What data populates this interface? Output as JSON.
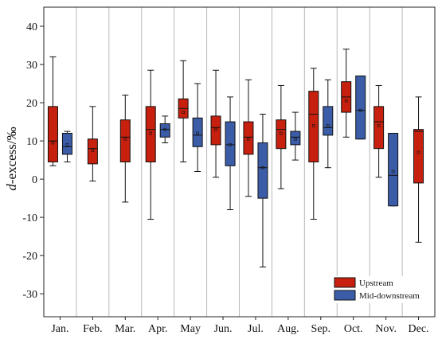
{
  "chart_data": {
    "type": "box",
    "ylabel_italic": "d",
    "ylabel_rest": "-excess/‰",
    "ylim": [
      -36,
      45
    ],
    "yticks": [
      40,
      30,
      20,
      10,
      0,
      -10,
      -20,
      -30
    ],
    "categories": [
      "Jan.",
      "Feb.",
      "Mar.",
      "Apr.",
      "May",
      "Jun.",
      "Jul.",
      "Aug.",
      "Sep.",
      "Oct.",
      "Nov.",
      "Dec."
    ],
    "legend_position": "bottom-right",
    "grid": "vertical separators",
    "series": [
      {
        "name": "Upstream",
        "color": "#c8200e",
        "boxes": [
          {
            "min": 3.5,
            "q1": 4.5,
            "median": 10,
            "mean": 9.5,
            "q3": 19,
            "max": 32
          },
          {
            "min": -0.5,
            "q1": 4,
            "median": 8,
            "mean": 7.5,
            "q3": 10.5,
            "max": 19
          },
          {
            "min": -6,
            "q1": 4.5,
            "median": 11,
            "mean": 10.5,
            "q3": 15.5,
            "max": 22
          },
          {
            "min": -10.5,
            "q1": 4.5,
            "median": 13,
            "mean": 12,
            "q3": 19,
            "max": 28.5
          },
          {
            "min": 4.5,
            "q1": 16,
            "median": 18.5,
            "mean": 17.5,
            "q3": 21,
            "max": 31
          },
          {
            "min": 0.5,
            "q1": 9,
            "median": 13.5,
            "mean": 13,
            "q3": 16.5,
            "max": 28.5
          },
          {
            "min": -4.5,
            "q1": 6.5,
            "median": 11,
            "mean": 10.5,
            "q3": 15,
            "max": 26
          },
          {
            "min": -2.5,
            "q1": 8,
            "median": 13,
            "mean": 12,
            "q3": 15.5,
            "max": 24.5
          },
          {
            "min": -10.5,
            "q1": 4.5,
            "median": 17,
            "mean": 14,
            "q3": 23,
            "max": 29
          },
          {
            "min": 11,
            "q1": 17.5,
            "median": 21.5,
            "mean": 20.5,
            "q3": 25.5,
            "max": 34
          },
          {
            "min": 0.5,
            "q1": 8,
            "median": 15,
            "mean": 14,
            "q3": 19,
            "max": 24.5
          },
          {
            "min": -16.5,
            "q1": -1,
            "median": 12.5,
            "mean": 7,
            "q3": 13,
            "max": 21.5
          }
        ]
      },
      {
        "name": "Mid-downstream",
        "color": "#3b5da8",
        "boxes": [
          {
            "min": 4.5,
            "q1": 6.5,
            "median": 8.5,
            "mean": 9,
            "q3": 12,
            "max": 12.5
          },
          null,
          null,
          {
            "min": 9.5,
            "q1": 11,
            "median": 13,
            "mean": 13,
            "q3": 14.5,
            "max": 16.5
          },
          {
            "min": 2,
            "q1": 8.5,
            "median": 11.5,
            "mean": 12,
            "q3": 16,
            "max": 25
          },
          {
            "min": -8,
            "q1": 3.5,
            "median": 9,
            "mean": 9,
            "q3": 15,
            "max": 21.5
          },
          {
            "min": -23,
            "q1": -5,
            "median": 3,
            "mean": 3,
            "q3": 9.5,
            "max": 17
          },
          {
            "min": 5,
            "q1": 9,
            "median": 11,
            "mean": 10.5,
            "q3": 12.5,
            "max": 17.5
          },
          {
            "min": 3,
            "q1": 11.5,
            "median": 13.5,
            "mean": 14,
            "q3": 19,
            "max": 26
          },
          {
            "min": 10.5,
            "q1": 10.5,
            "median": 18,
            "mean": 18,
            "q3": 27,
            "max": 27
          },
          {
            "min": -7,
            "q1": -7,
            "median": 1,
            "mean": 2,
            "q3": 12,
            "max": 12
          },
          null
        ]
      }
    ]
  }
}
